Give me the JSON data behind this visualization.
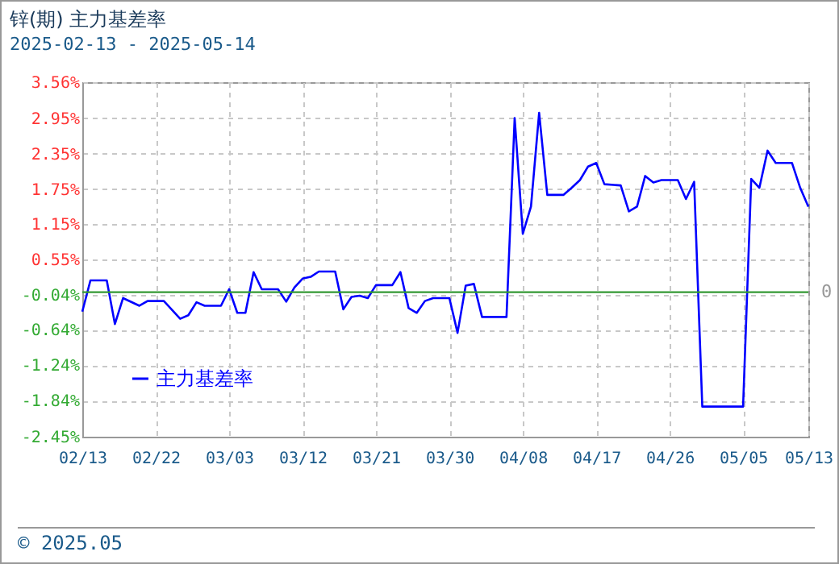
{
  "chart_data": {
    "type": "line",
    "title": "锌(期) 主力基差率",
    "subtitle": "2025-02-13 - 2025-05-14",
    "x": [
      "2025-02-13",
      "2025-02-14",
      "2025-02-16",
      "2025-02-17",
      "2025-02-18",
      "2025-02-20",
      "2025-02-21",
      "2025-02-23",
      "2025-02-25",
      "2025-02-26",
      "2025-02-27",
      "2025-02-28",
      "2025-03-02",
      "2025-03-03",
      "2025-03-04",
      "2025-03-05",
      "2025-03-06",
      "2025-03-07",
      "2025-03-09",
      "2025-03-10",
      "2025-03-11",
      "2025-03-12",
      "2025-03-13",
      "2025-03-14",
      "2025-03-16",
      "2025-03-17",
      "2025-03-18",
      "2025-03-19",
      "2025-03-20",
      "2025-03-21",
      "2025-03-23",
      "2025-03-24",
      "2025-03-25",
      "2025-03-26",
      "2025-03-27",
      "2025-03-28",
      "2025-03-30",
      "2025-03-31",
      "2025-04-01",
      "2025-04-02",
      "2025-04-03",
      "2025-04-06",
      "2025-04-07",
      "2025-04-08",
      "2025-04-09",
      "2025-04-10",
      "2025-04-11",
      "2025-04-13",
      "2025-04-14",
      "2025-04-15",
      "2025-04-16",
      "2025-04-17",
      "2025-04-18",
      "2025-04-20",
      "2025-04-21",
      "2025-04-22",
      "2025-04-23",
      "2025-04-24",
      "2025-04-25",
      "2025-04-27",
      "2025-04-28",
      "2025-04-29",
      "2025-04-30",
      "2025-05-05",
      "2025-05-06",
      "2025-05-07",
      "2025-05-08",
      "2025-05-09",
      "2025-05-11",
      "2025-05-12",
      "2025-05-13"
    ],
    "series": [
      {
        "name": "主力基差率",
        "color": "#0000ff",
        "values": [
          -0.33,
          0.2,
          0.2,
          -0.54,
          -0.1,
          -0.23,
          -0.15,
          -0.15,
          -0.45,
          -0.39,
          -0.17,
          -0.23,
          -0.23,
          0.05,
          -0.35,
          -0.35,
          0.34,
          0.05,
          0.05,
          -0.16,
          0.08,
          0.23,
          0.26,
          0.35,
          0.35,
          -0.29,
          -0.08,
          -0.06,
          -0.1,
          0.12,
          0.12,
          0.34,
          -0.27,
          -0.35,
          -0.15,
          -0.1,
          -0.1,
          -0.69,
          0.11,
          0.14,
          -0.42,
          -0.42,
          2.95,
          0.99,
          1.45,
          3.04,
          1.65,
          1.65,
          1.77,
          1.9,
          2.13,
          2.19,
          1.83,
          1.81,
          1.37,
          1.45,
          1.97,
          1.86,
          1.9,
          1.9,
          1.58,
          1.87,
          -1.94,
          -1.94,
          1.92,
          1.77,
          2.4,
          2.19,
          2.19,
          1.77,
          1.45
        ]
      }
    ],
    "xlim": [
      "2025-02-13",
      "2025-05-13"
    ],
    "xticks": [
      {
        "value": "2025-02-13",
        "label": "02/13"
      },
      {
        "value": "2025-02-22",
        "label": "02/22"
      },
      {
        "value": "2025-03-03",
        "label": "03/03"
      },
      {
        "value": "2025-03-12",
        "label": "03/12"
      },
      {
        "value": "2025-03-21",
        "label": "03/21"
      },
      {
        "value": "2025-03-30",
        "label": "03/30"
      },
      {
        "value": "2025-04-08",
        "label": "04/08"
      },
      {
        "value": "2025-04-17",
        "label": "04/17"
      },
      {
        "value": "2025-04-26",
        "label": "04/26"
      },
      {
        "value": "2025-05-05",
        "label": "05/05"
      },
      {
        "value": "2025-05-13",
        "label": "05/13"
      }
    ],
    "ylim": [
      -2.45,
      3.56
    ],
    "yticks": [
      {
        "value": 3.56,
        "label": "3.56%"
      },
      {
        "value": 2.95,
        "label": "2.95%"
      },
      {
        "value": 2.35,
        "label": "2.35%"
      },
      {
        "value": 1.75,
        "label": "1.75%"
      },
      {
        "value": 1.15,
        "label": "1.15%"
      },
      {
        "value": 0.55,
        "label": "0.55%"
      },
      {
        "value": -0.04,
        "label": "-0.04%"
      },
      {
        "value": -0.64,
        "label": "-0.64%"
      },
      {
        "value": -1.24,
        "label": "-1.24%"
      },
      {
        "value": -1.84,
        "label": "-1.84%"
      },
      {
        "value": -2.45,
        "label": "-2.45%"
      }
    ],
    "ref_lines": [
      {
        "axis": "y",
        "value": 0,
        "label": "0",
        "color": "#339933"
      }
    ],
    "grid": true,
    "legend": "bottom",
    "marker": "none",
    "line_style": "solid",
    "annotations": [
      "© 2025.05"
    ]
  }
}
